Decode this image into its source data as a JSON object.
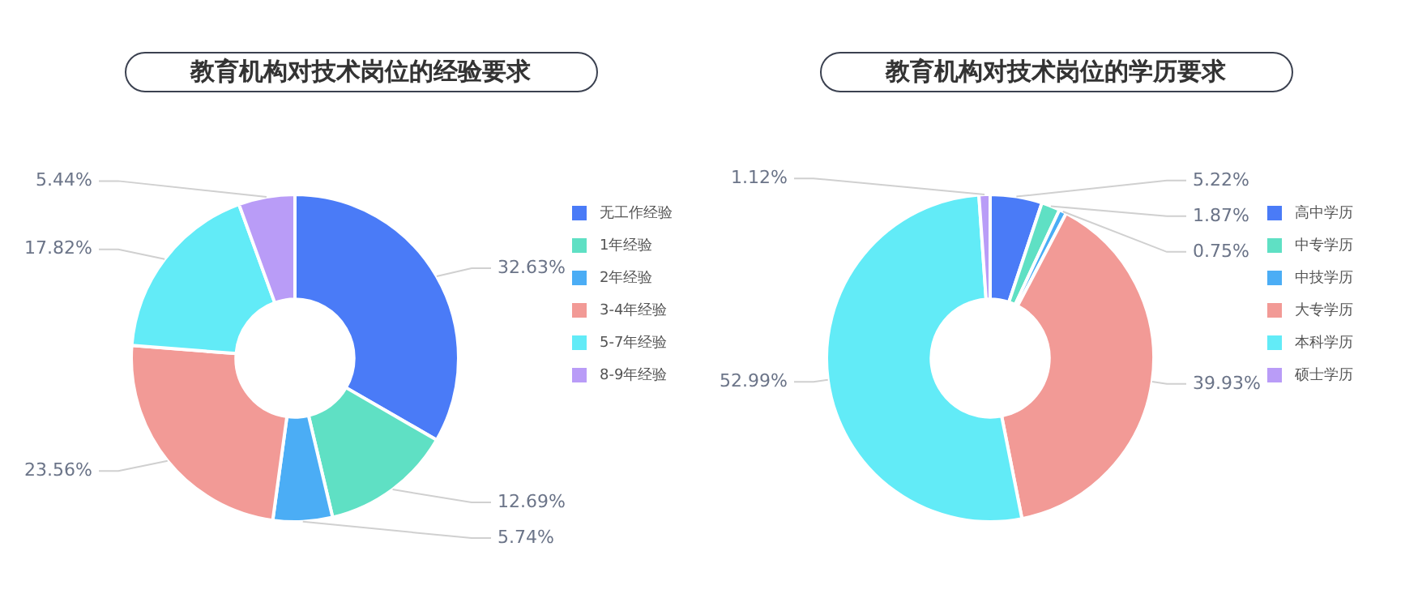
{
  "chart_data": [
    {
      "type": "donut",
      "title": "教育机构对技术岗位的经验要求",
      "categories": [
        "无工作经验",
        "1年经验",
        "2年经验",
        "3-4年经验",
        "5-7年经验",
        "8-9年经验"
      ],
      "values": [
        32.63,
        12.69,
        5.74,
        23.56,
        17.82,
        5.44
      ],
      "colors": [
        "#4a7bf7",
        "#5fe0c4",
        "#4badf5",
        "#f29a96",
        "#62ebf7",
        "#b99cf7"
      ],
      "value_labels": [
        "32.63%",
        "12.69%",
        "5.74%",
        "23.56%",
        "17.82%",
        "5.44%"
      ],
      "legend": "right"
    },
    {
      "type": "donut",
      "title": "教育机构对技术岗位的学历要求",
      "categories": [
        "高中学历",
        "中专学历",
        "中技学历",
        "大专学历",
        "本科学历",
        "硕士学历"
      ],
      "values": [
        5.22,
        1.87,
        0.75,
        39.93,
        52.99,
        1.12
      ],
      "colors": [
        "#4a7bf7",
        "#5fe0c4",
        "#4badf5",
        "#f29a96",
        "#62ebf7",
        "#b99cf7"
      ],
      "value_labels": [
        "5.22%",
        "1.87%",
        "0.75%",
        "39.93%",
        "52.99%",
        "1.12%"
      ],
      "legend": "right"
    }
  ]
}
